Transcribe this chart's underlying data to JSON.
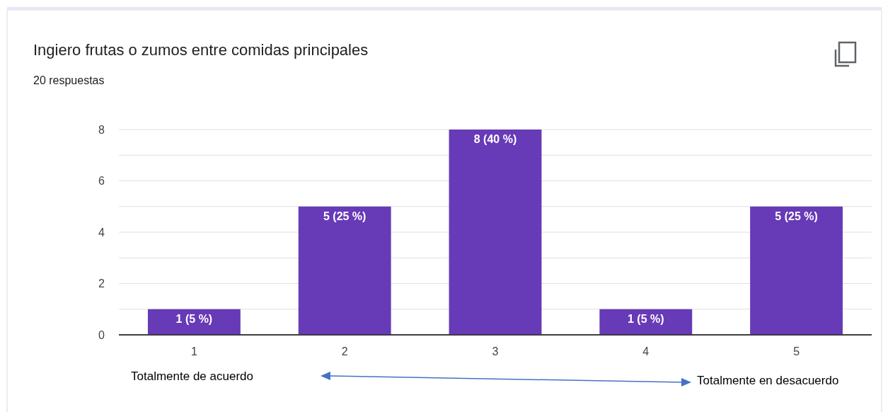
{
  "chart_data": {
    "type": "bar",
    "title": "Ingiero frutas o zumos entre comidas principales",
    "subtitle": "20 respuestas",
    "categories": [
      "1",
      "2",
      "3",
      "4",
      "5"
    ],
    "values": [
      1,
      5,
      8,
      1,
      5
    ],
    "value_labels": [
      "1 (5 %)",
      "5 (25 %)",
      "8 (40 %)",
      "1 (5 %)",
      "5 (25 %)"
    ],
    "color": "#673ab7",
    "ylim": [
      0,
      8
    ],
    "yticks": [
      0,
      {
        "value": 1,
        "label": null
      },
      2,
      {
        "value": 3,
        "label": null
      },
      4,
      {
        "value": 5,
        "label": null
      },
      6,
      {
        "value": 7,
        "label": null
      },
      8
    ],
    "grid": "y",
    "annotations": [
      "Totalmente de acuerdo",
      "Totalmente en desacuerdo"
    ]
  }
}
